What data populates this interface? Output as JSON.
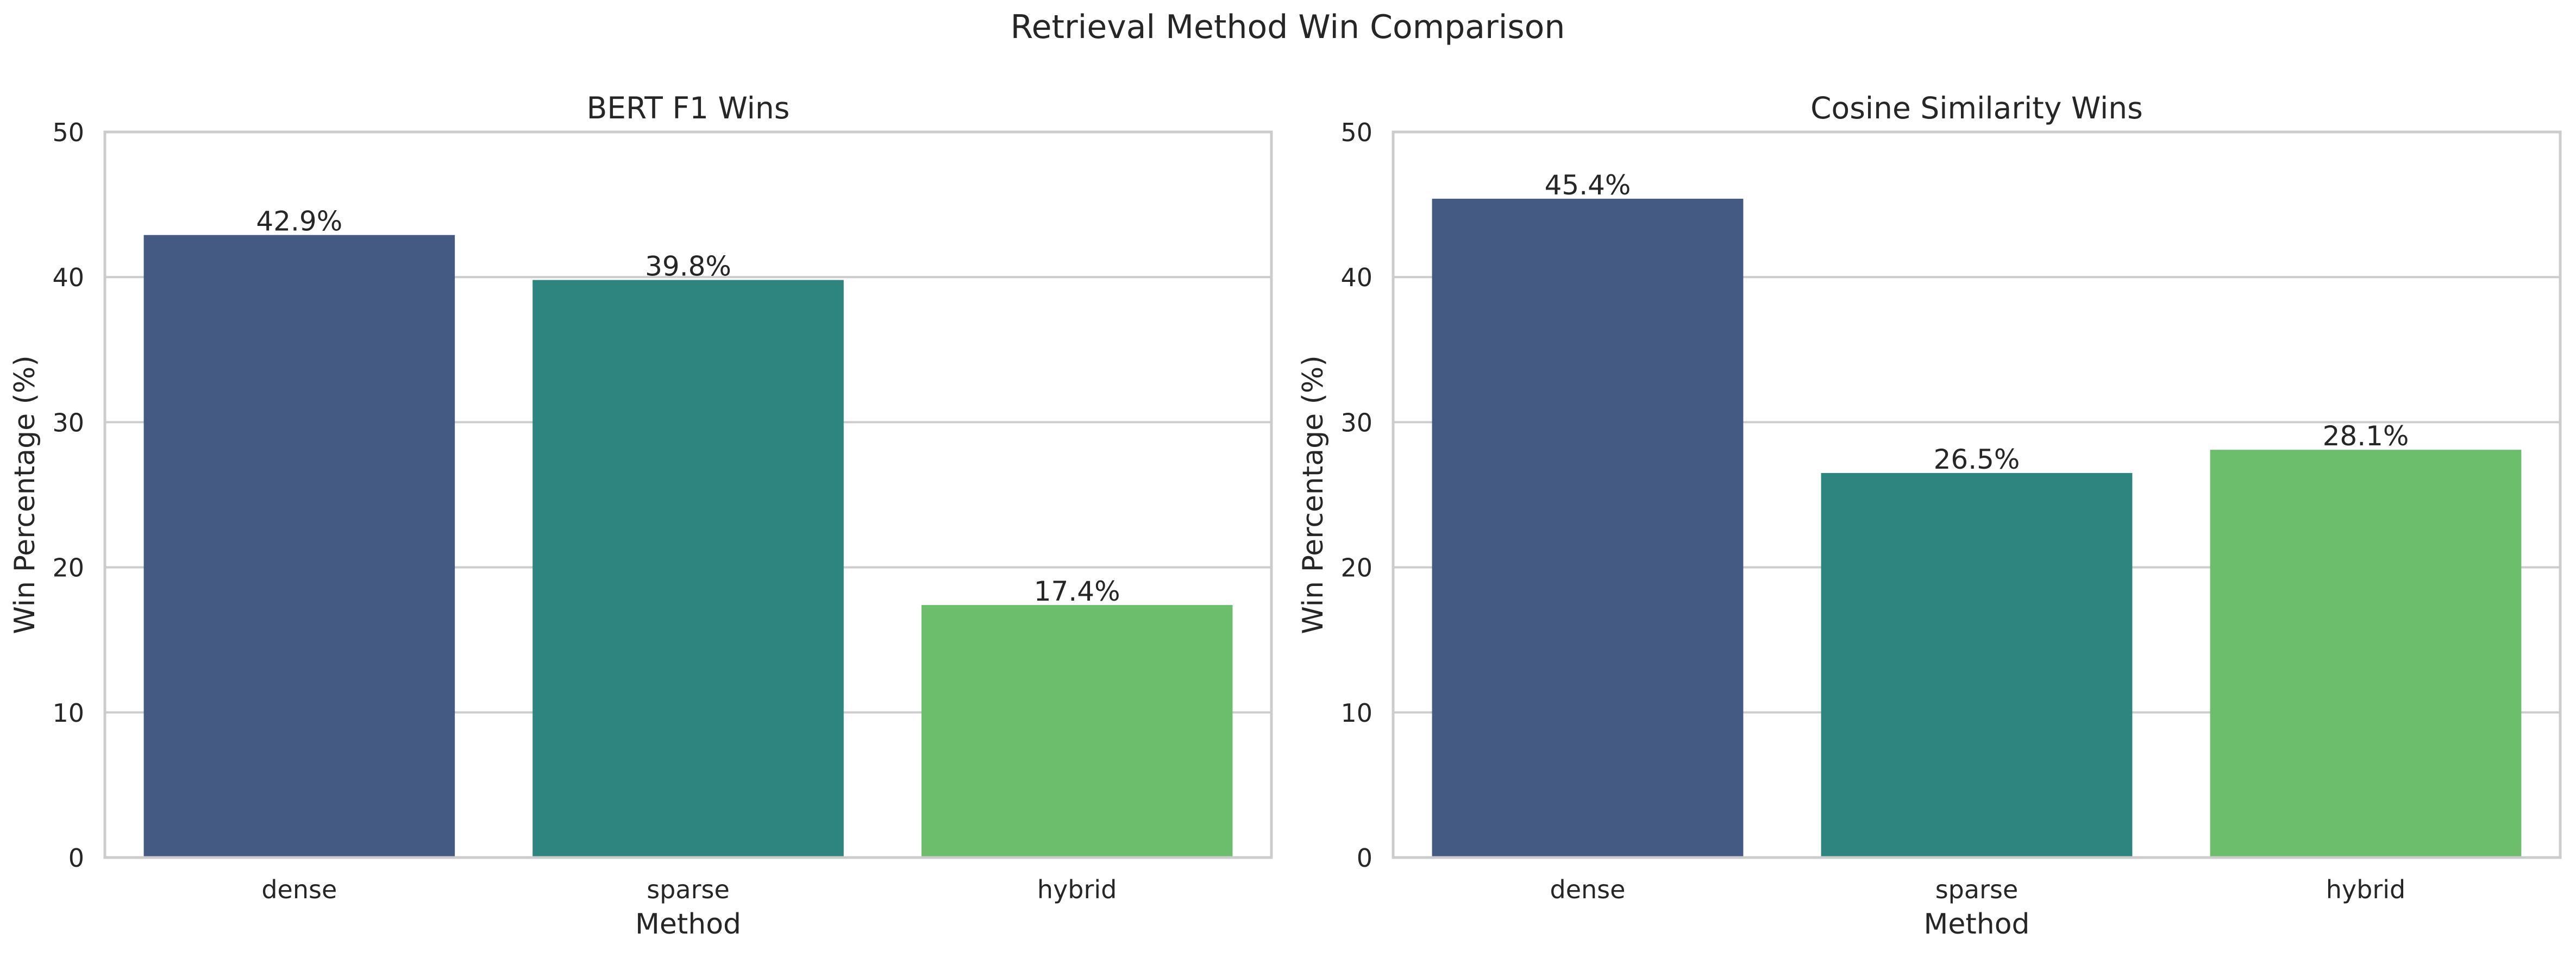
{
  "suptitle": "Retrieval Method Win Comparison",
  "colors": {
    "background": "#ffffff",
    "grid": "#cccccc",
    "spine": "#cccccc",
    "text": "#262626",
    "bar_colors": [
      "#455a83",
      "#2e847e",
      "#6cbe6d"
    ]
  },
  "chart_data": [
    {
      "type": "bar",
      "title": "BERT F1 Wins",
      "xlabel": "Method",
      "ylabel": "Win Percentage (%)",
      "categories": [
        "dense",
        "sparse",
        "hybrid"
      ],
      "values": [
        42.9,
        39.8,
        17.4
      ],
      "data_labels": [
        "42.9%",
        "39.8%",
        "17.4%"
      ],
      "ylim": [
        0,
        50
      ],
      "yticks": [
        0,
        10,
        20,
        30,
        40,
        50
      ],
      "ytick_labels": [
        "0",
        "10",
        "20",
        "30",
        "40",
        "50"
      ],
      "grid": "y"
    },
    {
      "type": "bar",
      "title": "Cosine Similarity Wins",
      "xlabel": "Method",
      "ylabel": "Win Percentage (%)",
      "categories": [
        "dense",
        "sparse",
        "hybrid"
      ],
      "values": [
        45.4,
        26.5,
        28.1
      ],
      "data_labels": [
        "45.4%",
        "26.5%",
        "28.1%"
      ],
      "ylim": [
        0,
        50
      ],
      "yticks": [
        0,
        10,
        20,
        30,
        40,
        50
      ],
      "ytick_labels": [
        "0",
        "10",
        "20",
        "30",
        "40",
        "50"
      ],
      "grid": "y"
    }
  ]
}
